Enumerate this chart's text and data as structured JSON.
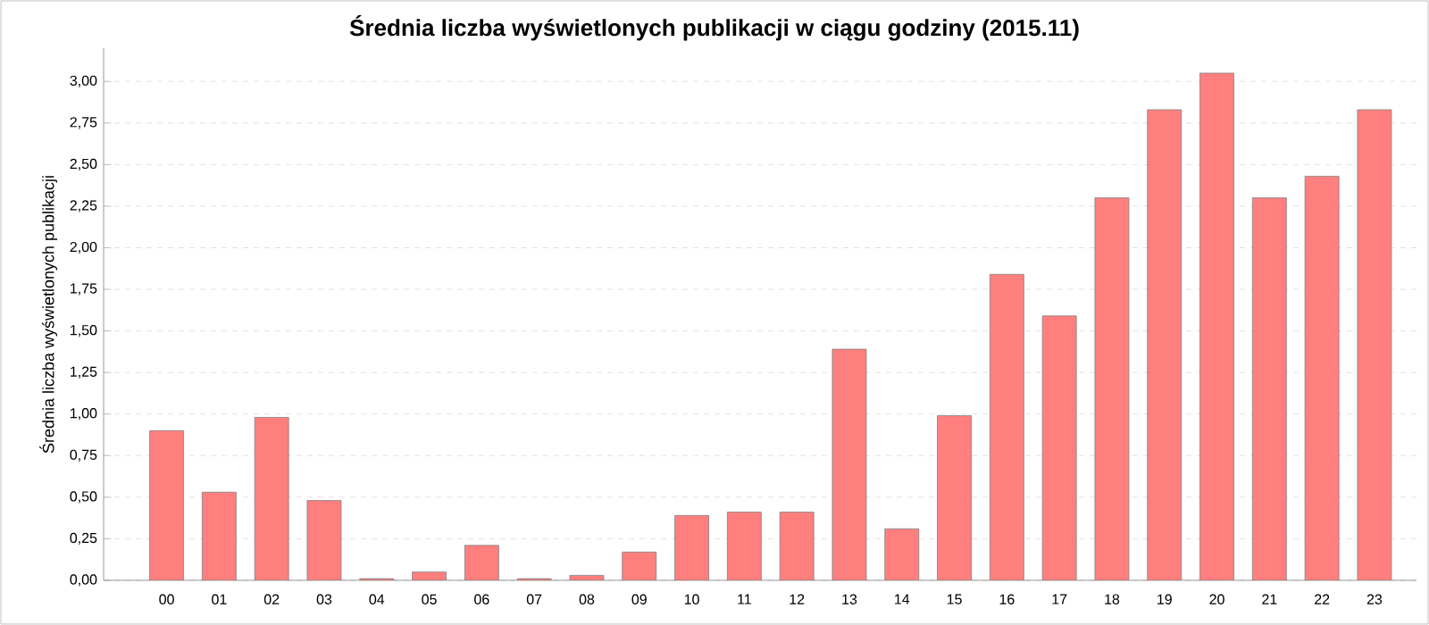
{
  "chart_data": {
    "type": "bar",
    "title": "Średnia liczba wyświetlonych publikacji w ciągu godziny (2015.11)",
    "ylabel": "Średnia liczba wyświetlonych publikacji",
    "categories": [
      "00",
      "01",
      "02",
      "03",
      "04",
      "05",
      "06",
      "07",
      "08",
      "09",
      "10",
      "11",
      "12",
      "13",
      "14",
      "15",
      "16",
      "17",
      "18",
      "19",
      "20",
      "21",
      "22",
      "23"
    ],
    "values": [
      0.9,
      0.53,
      0.98,
      0.48,
      0.01,
      0.05,
      0.21,
      0.01,
      0.03,
      0.17,
      0.39,
      0.41,
      0.41,
      1.39,
      0.31,
      0.99,
      1.84,
      1.59,
      2.3,
      2.83,
      3.05,
      2.3,
      2.43,
      2.83
    ],
    "color": "#ff7f7f",
    "ylim": [
      0,
      3.2
    ],
    "yticks": [
      {
        "value": 0,
        "label": "0,00"
      },
      {
        "value": 0.25,
        "label": "0,25"
      },
      {
        "value": 0.5,
        "label": "0,50"
      },
      {
        "value": 0.75,
        "label": "0,75"
      },
      {
        "value": 1,
        "label": "1,00"
      },
      {
        "value": 1.25,
        "label": "1,25"
      },
      {
        "value": 1.5,
        "label": "1,50"
      },
      {
        "value": 1.75,
        "label": "1,75"
      },
      {
        "value": 2,
        "label": "2,00"
      },
      {
        "value": 2.25,
        "label": "2,25"
      },
      {
        "value": 2.5,
        "label": "2,50"
      },
      {
        "value": 2.75,
        "label": "2,75"
      },
      {
        "value": 3,
        "label": "3,00"
      }
    ],
    "grid": "y"
  }
}
